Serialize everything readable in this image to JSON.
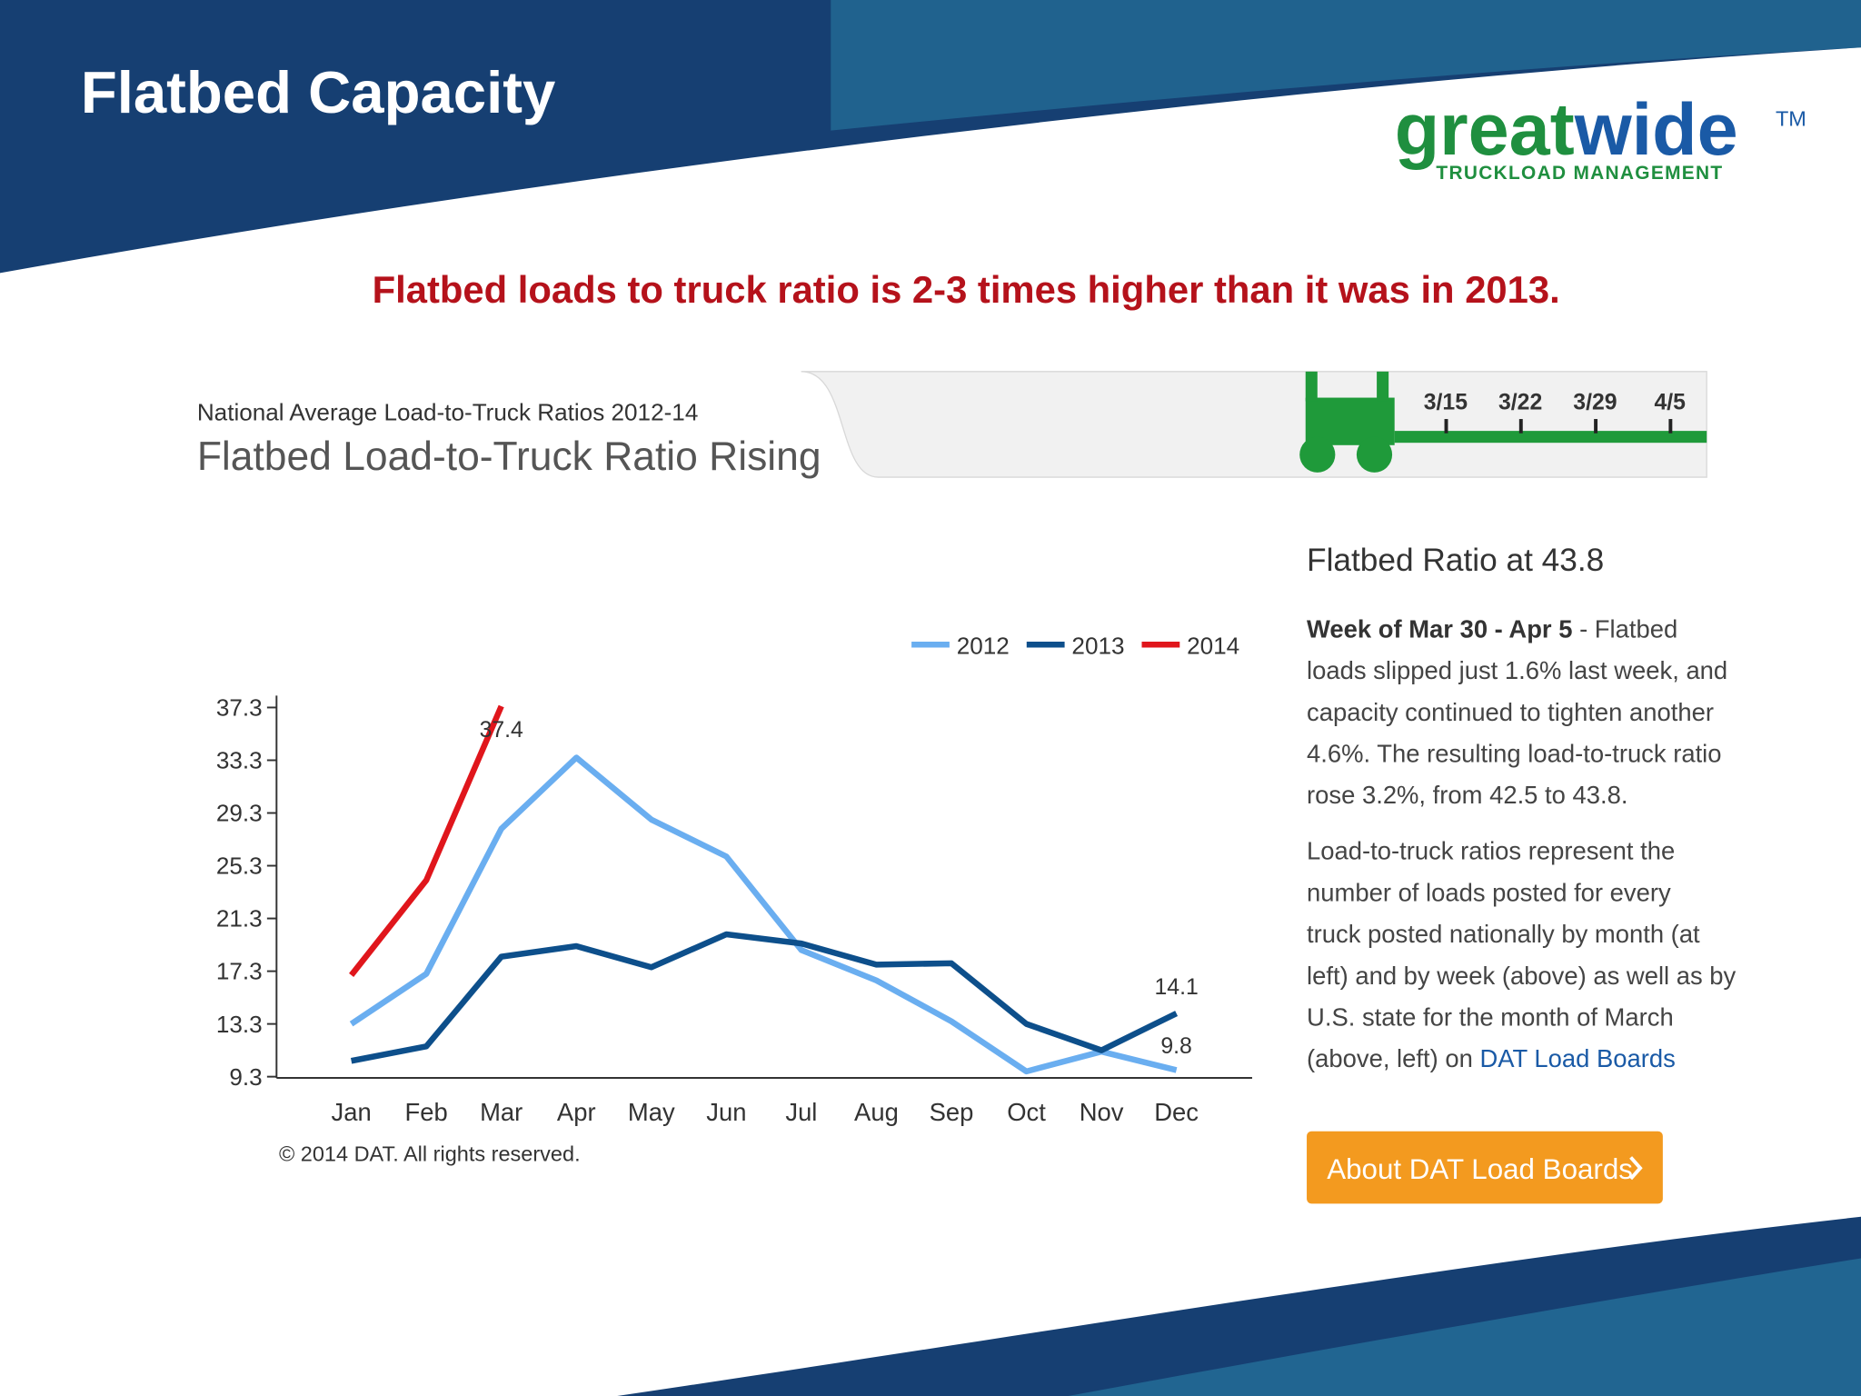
{
  "slide": {
    "title": "Flatbed Capacity",
    "headline": "Flatbed loads to truck ratio is 2-3 times higher than it was in 2013."
  },
  "logo": {
    "part1": "great",
    "part2": "wide",
    "trademark": "TM",
    "tagline": "TRUCKLOAD MANAGEMENT"
  },
  "panel": {
    "kicker": "National Average Load-to-Truck Ratios 2012-14",
    "heading": "Flatbed Load-to-Truck Ratio Rising",
    "weeks": [
      "3/15",
      "3/22",
      "3/29",
      "4/5"
    ]
  },
  "sidebar": {
    "heading": "Flatbed Ratio at 43.8",
    "paragraph1": {
      "bold": "Week of Mar 30 - Apr 5",
      "lines": [
        " - Flatbed",
        "loads slipped just 1.6% last week, and",
        "capacity continued to tighten another",
        "4.6%. The resulting load-to-truck ratio",
        "rose 3.2%, from 42.5 to 43.8."
      ]
    },
    "paragraph2": {
      "lines": [
        "Load-to-truck ratios represent the",
        "number of loads posted for every",
        "truck posted nationally by month (at",
        "left) and by week (above) as well as by",
        "U.S. state for the month of March",
        "(above, left) on "
      ],
      "link": "DAT Load Boards"
    },
    "button": "About DAT Load Boards"
  },
  "chart_data": {
    "type": "line",
    "copyright": "© 2014 DAT. All rights reserved.",
    "categories": [
      "Jan",
      "Feb",
      "Mar",
      "Apr",
      "May",
      "Jun",
      "Jul",
      "Aug",
      "Sep",
      "Oct",
      "Nov",
      "Dec"
    ],
    "series": [
      {
        "name": "2012",
        "color": "#6aaef0",
        "values": [
          13.3,
          17.1,
          28.1,
          33.5,
          28.8,
          26.0,
          18.9,
          16.6,
          13.5,
          9.7,
          11.2,
          9.8
        ]
      },
      {
        "name": "2013",
        "color": "#0d4f8b",
        "values": [
          10.5,
          11.6,
          18.4,
          19.2,
          17.6,
          20.1,
          19.4,
          17.8,
          17.9,
          13.3,
          11.3,
          14.1
        ]
      },
      {
        "name": "2014",
        "color": "#e0161c",
        "values": [
          17.0,
          24.2,
          37.4,
          null,
          null,
          null,
          null,
          null,
          null,
          null,
          null,
          null
        ]
      }
    ],
    "ylim": [
      9.3,
      37.3
    ],
    "yticks": [
      9.3,
      13.3,
      17.3,
      21.3,
      25.3,
      29.3,
      33.3,
      37.3
    ],
    "legend": "top-right"
  }
}
